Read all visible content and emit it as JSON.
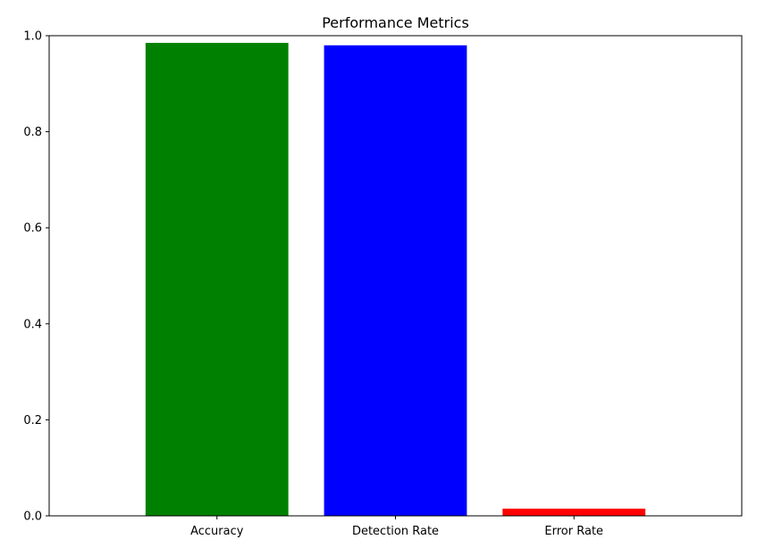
{
  "chart_data": {
    "type": "bar",
    "title": "Performance Metrics",
    "xlabel": "",
    "ylabel": "",
    "categories": [
      "Accuracy",
      "Detection Rate",
      "Error Rate"
    ],
    "values": [
      0.985,
      0.98,
      0.015
    ],
    "colors": [
      "#008000",
      "#0000ff",
      "#ff0000"
    ],
    "ylim": [
      0,
      1.0
    ],
    "yticks": [
      "0.0",
      "0.2",
      "0.4",
      "0.6",
      "0.8",
      "1.0"
    ],
    "grid": false,
    "legend": "none"
  }
}
